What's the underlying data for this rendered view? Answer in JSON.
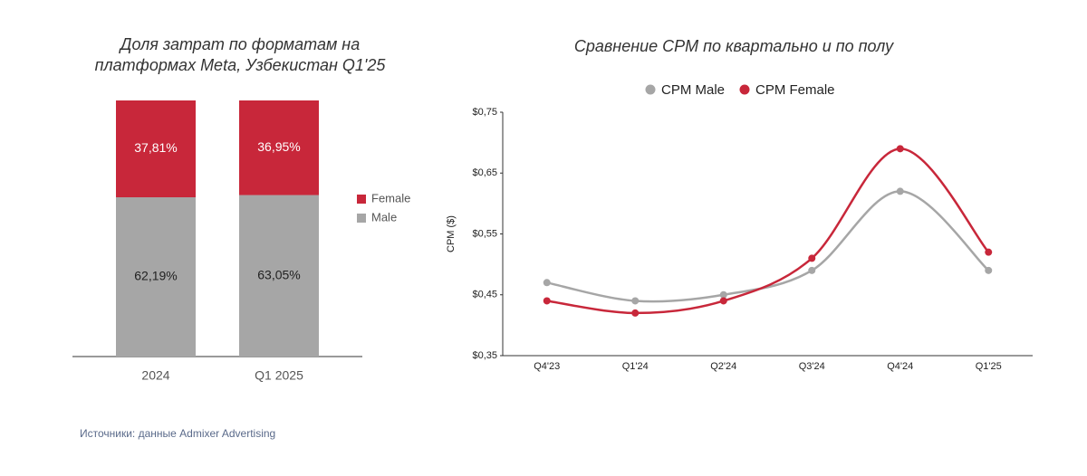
{
  "chart_data": [
    {
      "type": "stacked_bar",
      "title": "Доля затрат по форматам на платформах Meta, Узбекистан Q1'25",
      "categories": [
        "2024",
        "Q1 2025"
      ],
      "series": [
        {
          "name": "Male",
          "color": "#a6a6a6",
          "values": [
            62.19,
            63.05
          ],
          "value_labels": [
            "62,19%",
            "63,05%"
          ]
        },
        {
          "name": "Female",
          "color": "#c8273a",
          "values": [
            37.81,
            36.95
          ],
          "value_labels": [
            "37,81%",
            "36,95%"
          ]
        }
      ],
      "legend": "right"
    },
    {
      "type": "line",
      "title": "Сравнение CPM по квартально и по полу",
      "ylabel": "CPM ($)",
      "categories": [
        "Q4'23",
        "Q1'24",
        "Q2'24",
        "Q3'24",
        "Q4'24",
        "Q1'25"
      ],
      "series": [
        {
          "name": "CPM Male",
          "color": "#a6a6a6",
          "values": [
            0.47,
            0.44,
            0.45,
            0.49,
            0.62,
            0.49
          ]
        },
        {
          "name": "CPM Female",
          "color": "#c8273a",
          "values": [
            0.44,
            0.42,
            0.44,
            0.51,
            0.69,
            0.52
          ]
        }
      ],
      "ylim": [
        0.35,
        0.75
      ],
      "yticks": [
        {
          "value": 0.35,
          "label": "$0,35"
        },
        {
          "value": 0.45,
          "label": "$0,45"
        },
        {
          "value": 0.55,
          "label": "$0,55"
        },
        {
          "value": 0.65,
          "label": "$0,65"
        },
        {
          "value": 0.75,
          "label": "$0,75"
        }
      ],
      "grid": false,
      "legend": "top"
    }
  ],
  "source": "Источники: данные Admixer Advertising"
}
